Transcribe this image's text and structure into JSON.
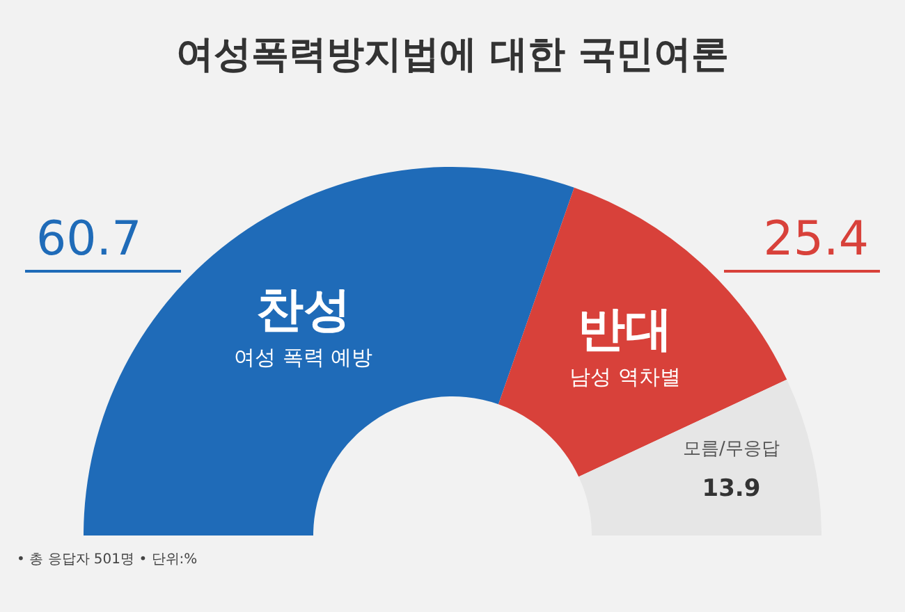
{
  "chart_data": {
    "type": "donut",
    "title": "여성폭력방지법에 대한 국민여론",
    "categories": [
      "찬성",
      "반대",
      "모름/무응답"
    ],
    "values": [
      60.7,
      25.4,
      13.9
    ],
    "colors": [
      "#1f6bb8",
      "#d8413a",
      "#e6e6e6"
    ],
    "data_labels": true,
    "annotations": [
      {
        "text": "여성 폭력 예방",
        "x": "찬성"
      },
      {
        "text": "남성 역차별",
        "x": "반대"
      },
      "• 총 응답자 501명 • 단위:%"
    ]
  }
}
